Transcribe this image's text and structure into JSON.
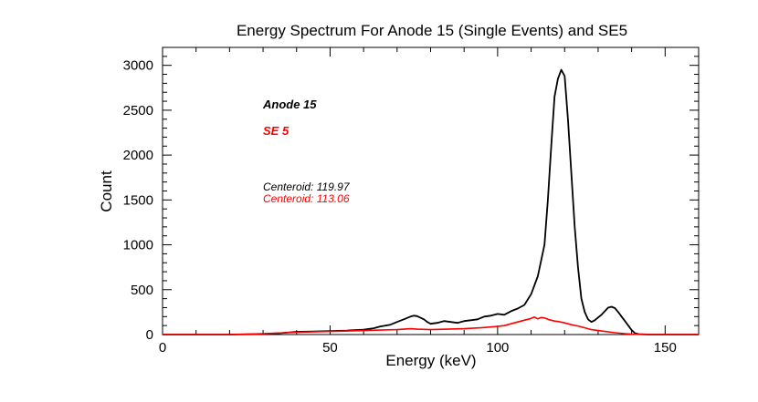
{
  "chart_data": {
    "type": "line",
    "title": "Energy Spectrum For Anode 15 (Single Events) and SE5",
    "xlabel": "Energy (keV)",
    "ylabel": "Count",
    "xlim": [
      0,
      160
    ],
    "ylim": [
      0,
      3200
    ],
    "xticks": [
      0,
      50,
      100,
      150
    ],
    "yticks": [
      0,
      500,
      1000,
      1500,
      2000,
      2500,
      3000
    ],
    "grid": false,
    "series": [
      {
        "name": "Anode 15",
        "color": "#000000",
        "x": [
          0,
          20,
          30,
          35,
          40,
          45,
          50,
          55,
          60,
          63,
          65,
          68,
          70,
          72,
          74,
          75,
          76,
          78,
          79,
          80,
          82,
          84,
          86,
          88,
          90,
          92,
          94,
          96,
          98,
          100,
          102,
          104,
          106,
          108,
          110,
          112,
          114,
          115,
          116,
          117,
          118,
          119,
          120,
          121,
          122,
          123,
          124,
          125,
          126,
          127,
          128,
          129,
          130,
          131,
          132,
          133,
          134,
          135,
          136,
          137,
          138,
          139,
          140,
          141,
          142,
          145,
          160
        ],
        "values": [
          0,
          0,
          5,
          15,
          30,
          35,
          40,
          45,
          55,
          70,
          90,
          110,
          140,
          170,
          200,
          210,
          205,
          170,
          140,
          120,
          130,
          150,
          140,
          130,
          150,
          160,
          170,
          200,
          210,
          230,
          220,
          260,
          290,
          330,
          450,
          650,
          1000,
          1500,
          2100,
          2650,
          2850,
          2950,
          2880,
          2400,
          1800,
          1200,
          750,
          400,
          250,
          170,
          140,
          160,
          190,
          220,
          260,
          300,
          310,
          295,
          250,
          200,
          150,
          100,
          50,
          15,
          5,
          0,
          0
        ]
      },
      {
        "name": "SE 5",
        "color": "#ff0000",
        "x": [
          0,
          20,
          30,
          40,
          50,
          60,
          65,
          70,
          74,
          76,
          80,
          85,
          90,
          95,
          100,
          102,
          104,
          106,
          108,
          110,
          111,
          112,
          113,
          114,
          115,
          116,
          117,
          118,
          120,
          122,
          124,
          126,
          128,
          130,
          132,
          135,
          138,
          140,
          142,
          145,
          160
        ],
        "values": [
          0,
          0,
          10,
          25,
          35,
          45,
          50,
          55,
          65,
          60,
          55,
          60,
          65,
          75,
          90,
          100,
          120,
          140,
          160,
          180,
          195,
          175,
          190,
          185,
          170,
          160,
          150,
          145,
          130,
          110,
          95,
          75,
          55,
          45,
          35,
          20,
          10,
          5,
          2,
          0,
          0
        ]
      }
    ],
    "annotations": {
      "legend_anode": "Anode 15",
      "legend_se": "SE 5",
      "centeroid_anode": "Centeroid: 119.97",
      "centeroid_se": "Centeroid: 113.06"
    }
  }
}
